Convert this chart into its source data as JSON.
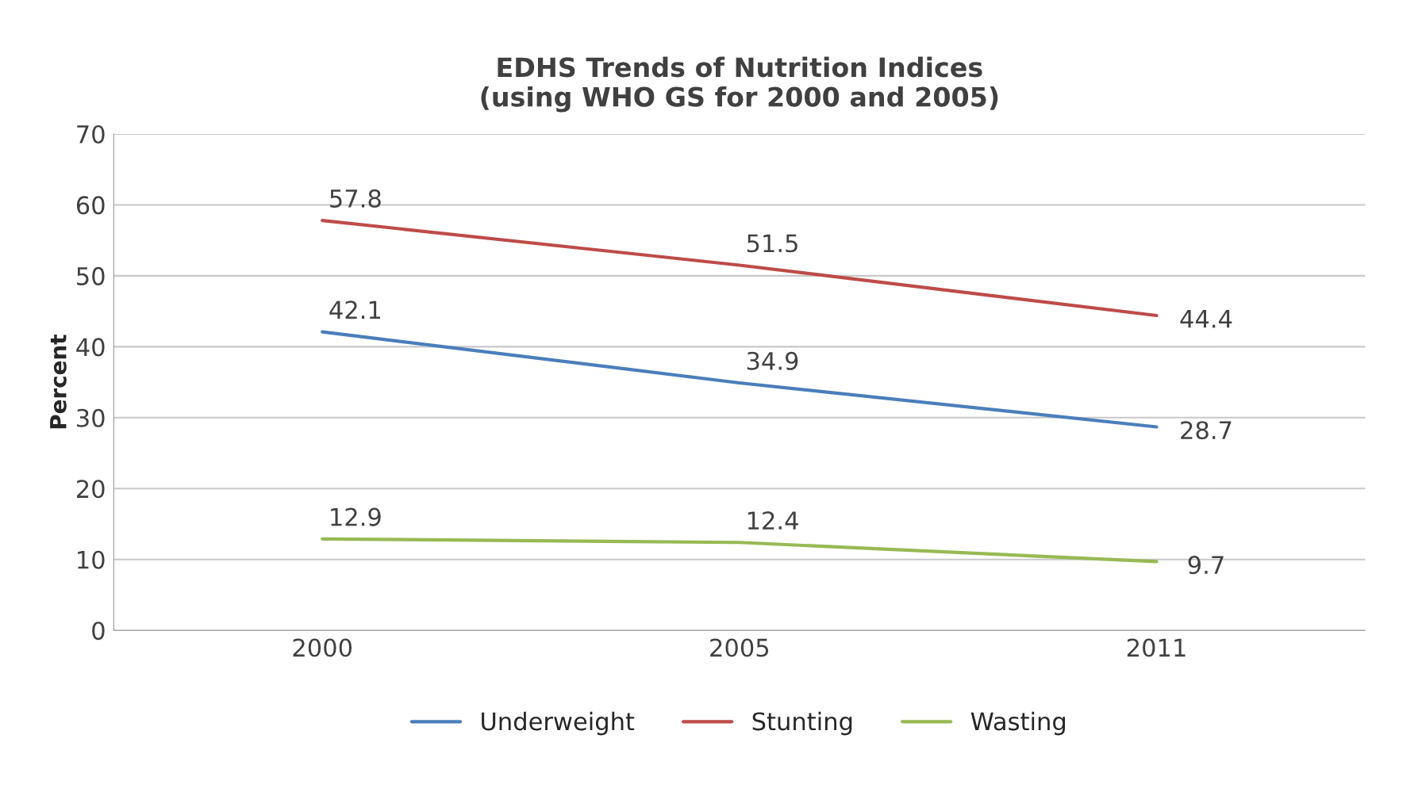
{
  "chart_data": {
    "type": "line",
    "title": "EDHS Trends of Nutrition Indices\n(using WHO GS for 2000 and 2005)",
    "ylabel": "Percent",
    "categories": [
      "2000",
      "2005",
      "2011"
    ],
    "series": [
      {
        "name": "Underweight",
        "color": "#4a7ebb",
        "values": [
          42.1,
          34.9,
          28.7
        ]
      },
      {
        "name": "Stunting",
        "color": "#be4b48",
        "values": [
          57.8,
          51.5,
          44.4
        ]
      },
      {
        "name": "Wasting",
        "color": "#98b954",
        "values": [
          12.9,
          12.4,
          9.7
        ]
      }
    ],
    "ylim": [
      0,
      70
    ],
    "yticks": [
      0,
      10,
      20,
      30,
      40,
      50,
      60,
      70
    ],
    "grid": "y",
    "legend": "bottom",
    "data_labels": true,
    "marker": "none",
    "line_style": "solid"
  }
}
